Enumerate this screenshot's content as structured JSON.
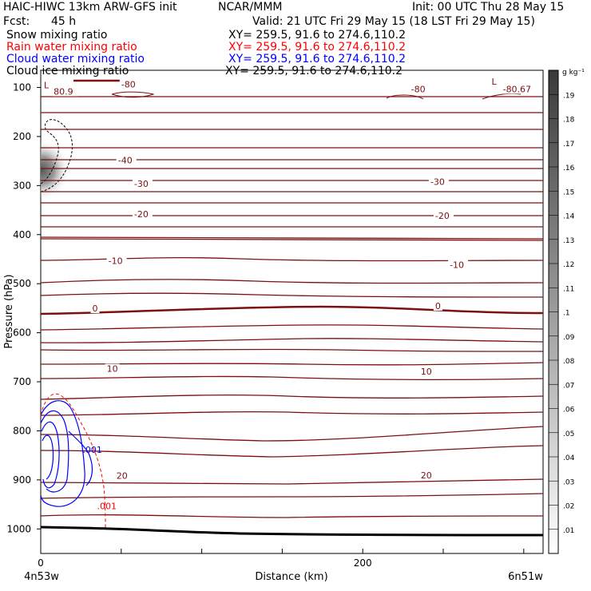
{
  "header": {
    "model": "HAIC-HIWC 13km ARW-GFS init",
    "org": "NCAR/MMM",
    "init": "Init: 00 UTC Thu 28 May 15",
    "fcst_label": "Fcst:",
    "fcst_value": "45 h",
    "valid": "Valid: 21 UTC Fri 29 May 15 (18 LST Fri 29 May 15)",
    "fields": [
      {
        "name": "Snow mixing ratio",
        "xy": "XY= 259.5, 91.6 to 274.6,110.2",
        "color": "#000000"
      },
      {
        "name": "Rain water mixing ratio",
        "xy": "XY= 259.5, 91.6 to 274.6,110.2",
        "color": "#ff0000"
      },
      {
        "name": "Cloud water mixing ratio",
        "xy": "XY= 259.5, 91.6 to 274.6,110.2",
        "color": "#0000ff"
      },
      {
        "name": "Cloud ice mixing ratio",
        "xy": "XY= 259.5, 91.6 to 274.6,110.2",
        "color": "#000000"
      }
    ]
  },
  "chart_data": {
    "type": "contour",
    "xlabel": "Distance (km)",
    "ylabel": "Pressure (hPa)",
    "xlim": [
      0,
      312
    ],
    "ylim": [
      1050,
      65
    ],
    "x_ticks": [
      0,
      200
    ],
    "y_ticks": [
      100,
      200,
      300,
      400,
      500,
      600,
      700,
      800,
      900,
      1000
    ],
    "x_endpoint_labels": [
      "4n53w",
      "6n51w"
    ],
    "colorbar": {
      "unit": "g kg⁻¹",
      "levels": [
        ".01",
        ".02",
        ".03",
        ".04",
        ".05",
        ".06",
        ".07",
        ".08",
        ".09",
        ".1",
        ".11",
        ".12",
        ".13",
        ".14",
        ".15",
        ".16",
        ".17",
        ".18",
        ".19"
      ]
    },
    "temperature_labels": [
      {
        "text": "80.9",
        "x": 8,
        "p": 113
      },
      {
        "text": "-80",
        "x": 50,
        "p": 98
      },
      {
        "text": "L",
        "x": 2,
        "p": 100
      },
      {
        "text": "-80",
        "x": 230,
        "p": 108
      },
      {
        "text": "L",
        "x": 280,
        "p": 93
      },
      {
        "text": "-80.67",
        "x": 287,
        "p": 108
      },
      {
        "text": "-40",
        "x": 48,
        "p": 253
      },
      {
        "text": "-30",
        "x": 58,
        "p": 301
      },
      {
        "text": "-30",
        "x": 242,
        "p": 297
      },
      {
        "text": "-20",
        "x": 58,
        "p": 363
      },
      {
        "text": "-20",
        "x": 245,
        "p": 366
      },
      {
        "text": "-10",
        "x": 42,
        "p": 458
      },
      {
        "text": "-10",
        "x": 254,
        "p": 466
      },
      {
        "text": "0",
        "x": 32,
        "p": 555
      },
      {
        "text": "0",
        "x": 245,
        "p": 550
      },
      {
        "text": "10",
        "x": 41,
        "p": 678
      },
      {
        "text": "10",
        "x": 236,
        "p": 684
      },
      {
        "text": "20",
        "x": 47,
        "p": 896
      },
      {
        "text": "20",
        "x": 236,
        "p": 895
      }
    ],
    "mixing_ratio_labels": [
      {
        "text": ".001",
        "x": 26,
        "p": 845,
        "field": "cloud_water"
      },
      {
        "text": ".001",
        "x": 35,
        "p": 960,
        "field": "rain_water"
      }
    ]
  }
}
